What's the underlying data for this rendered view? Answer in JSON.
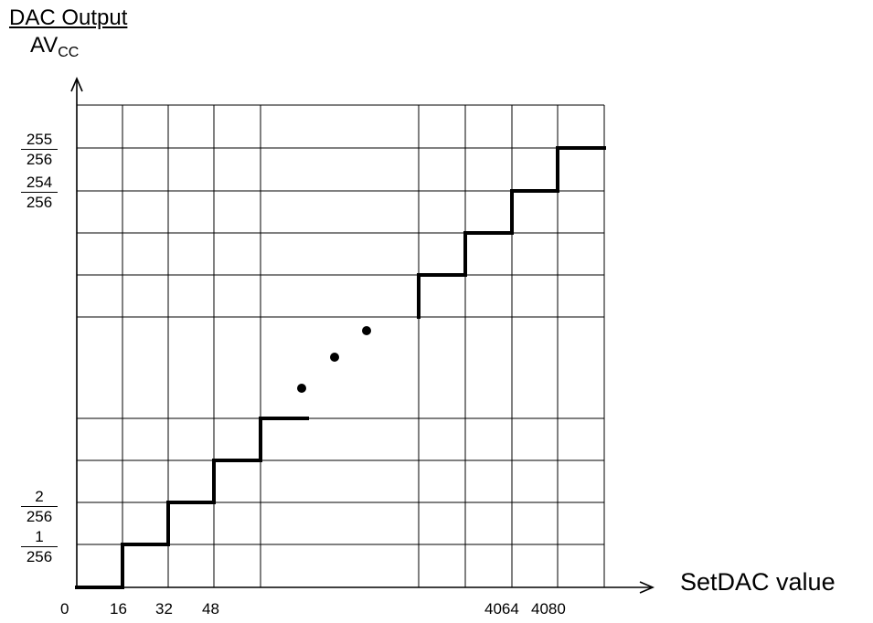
{
  "title": "DAC Output",
  "y_axis": {
    "label_main": "AV",
    "label_sub": "CC"
  },
  "x_axis": {
    "label": "SetDAC value"
  },
  "x_tick_labels": [
    "0",
    "16",
    "32",
    "48",
    "4064",
    "4080"
  ],
  "y_tick_labels": [
    {
      "num": "1",
      "den": "256"
    },
    {
      "num": "2",
      "den": "256"
    },
    {
      "num": "254",
      "den": "256"
    },
    {
      "num": "255",
      "den": "256"
    }
  ],
  "ellipsis": "continuation dots",
  "colors": {
    "line": "#000000",
    "grid": "#000000",
    "background": "#ffffff"
  }
}
